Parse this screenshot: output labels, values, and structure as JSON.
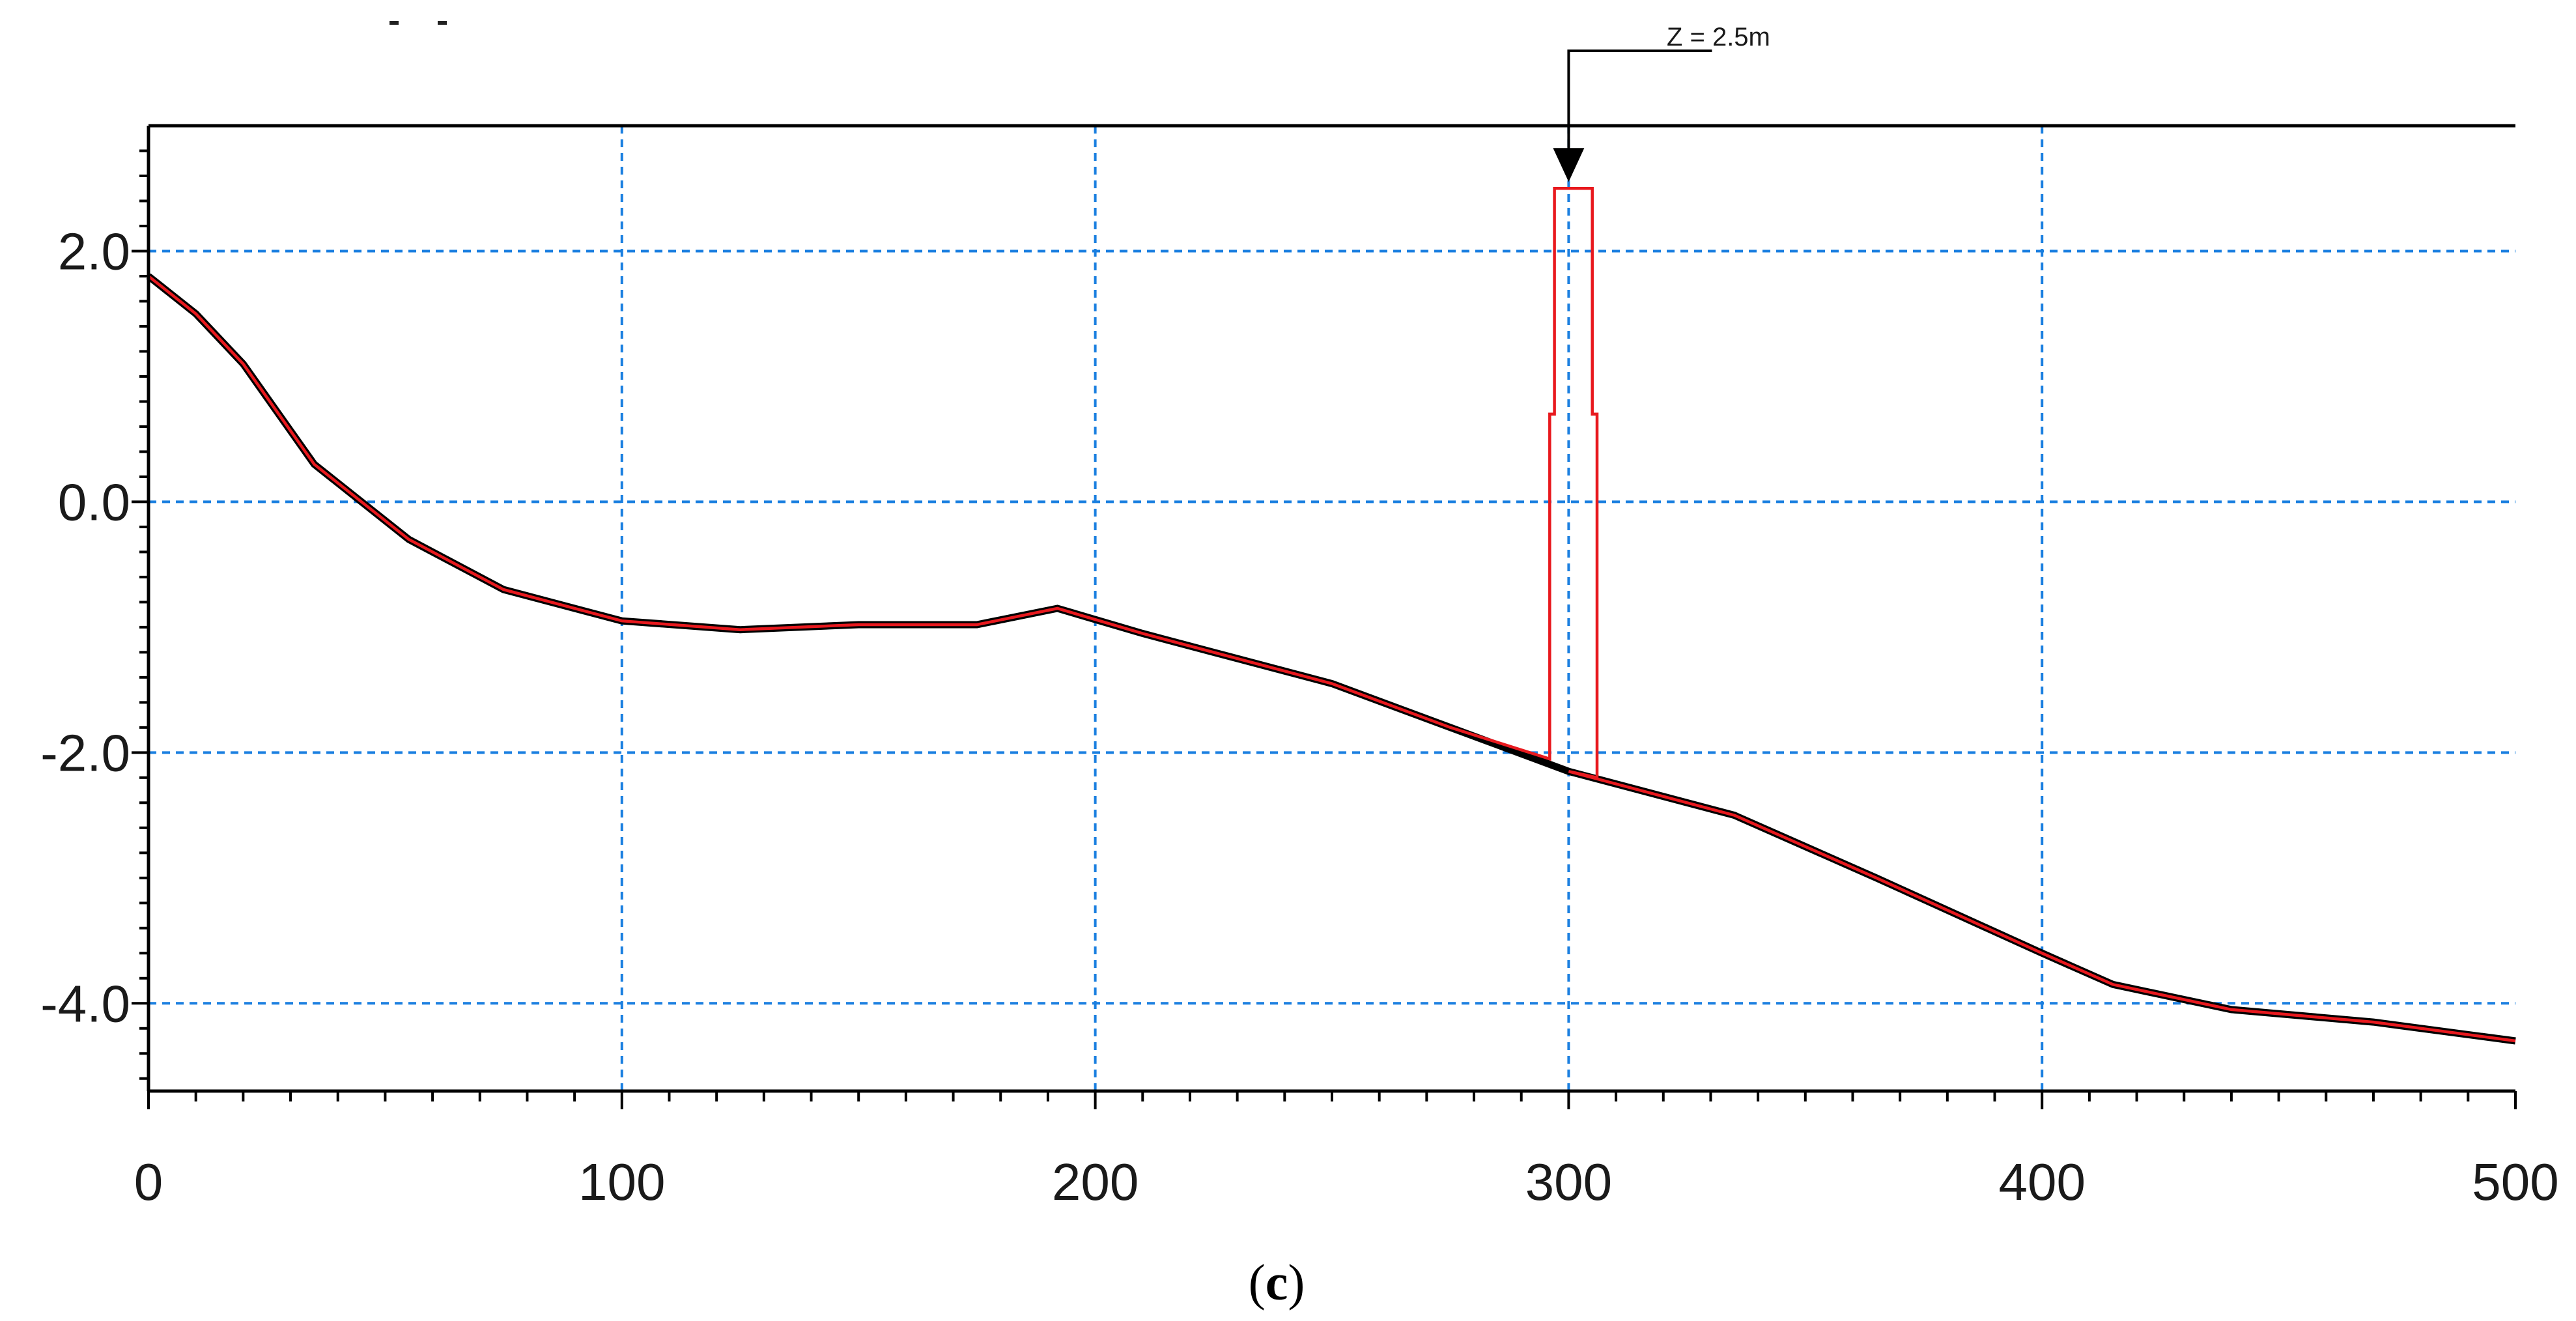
{
  "chart_data": {
    "type": "line",
    "title": "",
    "xlabel": "",
    "ylabel": "",
    "xlim": [
      0,
      500
    ],
    "ylim": [
      -4.7,
      3.0
    ],
    "x_ticks": [
      0,
      100,
      200,
      300,
      400,
      500
    ],
    "x_tick_labels": [
      "0",
      "100",
      "200",
      "300",
      "400",
      "500"
    ],
    "y_ticks": [
      2.0,
      0.0,
      -2.0,
      -4.0
    ],
    "y_tick_labels": [
      "2.0",
      "0.0",
      "-2.0",
      "-4.0"
    ],
    "grid": true,
    "colors": {
      "grid": "#1a7fe0",
      "series_black": "#000000",
      "series_red": "#e8191e",
      "axis": "#000000"
    },
    "series": [
      {
        "color": "#000000",
        "x": [
          0,
          10,
          20,
          35,
          55,
          75,
          100,
          125,
          150,
          175,
          192,
          210,
          225,
          250,
          275,
          300,
          335,
          365,
          400,
          415,
          440,
          470,
          500
        ],
        "y": [
          1.8,
          1.5,
          1.1,
          0.3,
          -0.3,
          -0.7,
          -0.95,
          -1.02,
          -0.98,
          -0.98,
          -0.85,
          -1.05,
          -1.2,
          -1.45,
          -1.8,
          -2.15,
          -2.5,
          -3.0,
          -3.6,
          -3.85,
          -4.05,
          -4.15,
          -4.3
        ]
      },
      {
        "color": "#e8191e",
        "x": [
          0,
          10,
          20,
          35,
          55,
          75,
          100,
          125,
          150,
          175,
          192,
          210,
          225,
          250,
          275,
          296,
          296,
          297,
          297,
          305,
          305,
          306,
          306,
          300,
          335,
          365,
          400,
          415,
          440,
          470,
          500
        ],
        "y": [
          1.8,
          1.5,
          1.1,
          0.3,
          -0.3,
          -0.7,
          -0.95,
          -1.02,
          -0.98,
          -0.98,
          -0.85,
          -1.05,
          -1.2,
          -1.45,
          -1.8,
          -2.05,
          0.7,
          0.7,
          2.5,
          2.5,
          0.7,
          0.7,
          -2.2,
          -2.15,
          -2.5,
          -3.0,
          -3.6,
          -3.85,
          -4.05,
          -4.15,
          -4.3
        ]
      }
    ],
    "annotations": [
      {
        "text": "Z = 2.5m",
        "x": 300,
        "y": 2.5
      }
    ]
  },
  "caption": {
    "open": "(",
    "letter": "c",
    "close": ")"
  }
}
